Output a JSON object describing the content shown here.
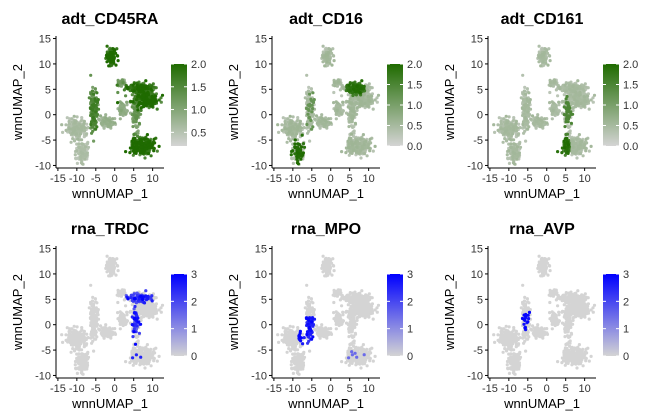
{
  "chart_data": [
    {
      "type": "scatter",
      "title": "adt_CD45RA",
      "xlabel": "wnnUMAP_1",
      "ylabel": "wnnUMAP_2",
      "xticks": [
        -15,
        -10,
        -5,
        0,
        5,
        10
      ],
      "yticks": [
        -10,
        -5,
        0,
        5,
        10,
        15
      ],
      "xlim": [
        -15.5,
        13
      ],
      "ylim": [
        -10.5,
        15.5
      ],
      "legend_ticks": [
        0.5,
        1.0,
        1.5,
        2.0
      ],
      "legend_range": [
        0.2,
        2.0
      ],
      "color_low": "#d4d4d4",
      "color_high": "#1f6b00",
      "pattern": "cd45ra"
    },
    {
      "type": "scatter",
      "title": "adt_CD16",
      "xlabel": "wnnUMAP_1",
      "ylabel": "wnnUMAP_2",
      "xticks": [
        -15,
        -10,
        -5,
        0,
        5,
        10
      ],
      "yticks": [
        -10,
        -5,
        0,
        5,
        10,
        15
      ],
      "xlim": [
        -15.5,
        13
      ],
      "ylim": [
        -10.5,
        15.5
      ],
      "legend_ticks": [
        0.0,
        0.5,
        1.0,
        1.5,
        2.0
      ],
      "legend_range": [
        0,
        2.0
      ],
      "color_low": "#d4d4d4",
      "color_high": "#1f6b00",
      "pattern": "cd16"
    },
    {
      "type": "scatter",
      "title": "adt_CD161",
      "xlabel": "wnnUMAP_1",
      "ylabel": "wnnUMAP_2",
      "xticks": [
        -15,
        -10,
        -5,
        0,
        5,
        10
      ],
      "yticks": [
        -10,
        -5,
        0,
        5,
        10,
        15
      ],
      "xlim": [
        -15.5,
        13
      ],
      "ylim": [
        -10.5,
        15.5
      ],
      "legend_ticks": [
        0.0,
        0.5,
        1.0,
        1.5,
        2.0
      ],
      "legend_range": [
        0,
        2.0
      ],
      "color_low": "#d4d4d4",
      "color_high": "#1f6b00",
      "pattern": "cd161"
    },
    {
      "type": "scatter",
      "title": "rna_TRDC",
      "xlabel": "wnnUMAP_1",
      "ylabel": "wnnUMAP_2",
      "xticks": [
        -15,
        -10,
        -5,
        0,
        5,
        10
      ],
      "yticks": [
        -10,
        -5,
        0,
        5,
        10,
        15
      ],
      "xlim": [
        -15.5,
        13
      ],
      "ylim": [
        -10.5,
        15.5
      ],
      "legend_ticks": [
        0,
        1,
        2,
        3
      ],
      "legend_range": [
        0,
        3
      ],
      "color_low": "#d4d4d4",
      "color_high": "#0000ff",
      "pattern": "trdc"
    },
    {
      "type": "scatter",
      "title": "rna_MPO",
      "xlabel": "wnnUMAP_1",
      "ylabel": "wnnUMAP_2",
      "xticks": [
        -15,
        -10,
        -5,
        0,
        5,
        10
      ],
      "yticks": [
        -10,
        -5,
        0,
        5,
        10,
        15
      ],
      "xlim": [
        -15.5,
        13
      ],
      "ylim": [
        -10.5,
        15.5
      ],
      "legend_ticks": [
        0,
        1,
        2,
        3
      ],
      "legend_range": [
        0,
        3
      ],
      "color_low": "#d4d4d4",
      "color_high": "#0000ff",
      "pattern": "mpo"
    },
    {
      "type": "scatter",
      "title": "rna_AVP",
      "xlabel": "wnnUMAP_1",
      "ylabel": "wnnUMAP_2",
      "xticks": [
        -15,
        -10,
        -5,
        0,
        5,
        10
      ],
      "yticks": [
        -10,
        -5,
        0,
        5,
        10,
        15
      ],
      "xlim": [
        -15.5,
        13
      ],
      "ylim": [
        -10.5,
        15.5
      ],
      "legend_ticks": [
        0,
        1,
        2,
        3
      ],
      "legend_range": [
        0,
        3
      ],
      "color_low": "#d4d4d4",
      "color_high": "#0000ff",
      "pattern": "avp"
    }
  ]
}
